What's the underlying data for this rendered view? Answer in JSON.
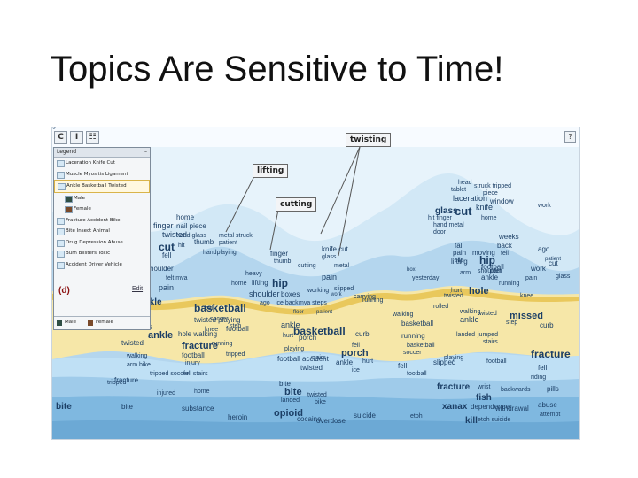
{
  "slide": {
    "title": "Topics Are Sensitive to Time!"
  },
  "toolbar": {
    "buttons": [
      "C",
      "I",
      "☷"
    ],
    "help": "?"
  },
  "legend": {
    "title": "Legend",
    "minimize": "–",
    "items": [
      {
        "label": "Laceration Knife Cut",
        "sub": false
      },
      {
        "label": "Muscle Myositis Ligament",
        "sub": false
      },
      {
        "label": "Ankle Basketball Twisted",
        "sub": false,
        "highlight": true
      },
      {
        "label": "Male",
        "sub": true,
        "color": "#2f4f45"
      },
      {
        "label": "Female",
        "sub": true,
        "color": "#7a4a2a"
      },
      {
        "label": "Fracture Accident Bike",
        "sub": false
      },
      {
        "label": "Bite Insect Animal",
        "sub": false
      },
      {
        "label": "Drug Depression Abuse",
        "sub": false
      },
      {
        "label": "Burn Blisters Toxic",
        "sub": false
      },
      {
        "label": "Accident Driver Vehicle",
        "sub": false
      }
    ],
    "footer": {
      "male": "Male",
      "female": "Female"
    },
    "panel_label": "(d)",
    "edit": "Edit"
  },
  "callouts": {
    "twisting": "twisting",
    "lifting": "lifting",
    "cutting": "cutting"
  },
  "colors": {
    "band_light": "#d8ebf7",
    "band_mid": "#b8d9f0",
    "band_dark": "#8fc2e6",
    "highlight": "#f6e7a8",
    "highlight_dark": "#e9c85c",
    "text": "#1c3f66"
  },
  "words": [
    {
      "t": "home",
      "s": 8
    },
    {
      "t": "finger",
      "s": 9
    },
    {
      "t": "nail piece",
      "s": 8
    },
    {
      "t": "twisted",
      "s": 9
    },
    {
      "t": "hand glass",
      "s": 7
    },
    {
      "t": "metal struck",
      "s": 7
    },
    {
      "t": "thumb",
      "s": 8
    },
    {
      "t": "patient",
      "s": 7
    },
    {
      "t": "cut",
      "s": 12
    },
    {
      "t": "hit",
      "s": 7
    },
    {
      "t": "fell",
      "s": 8
    },
    {
      "t": "handplaying",
      "s": 7
    },
    {
      "t": "houlder",
      "s": 8
    },
    {
      "t": "felt mva",
      "s": 7
    },
    {
      "t": "pain",
      "s": 9
    },
    {
      "t": "heavy",
      "s": 7
    },
    {
      "t": "home",
      "s": 7
    },
    {
      "t": "lifting",
      "s": 8
    },
    {
      "t": "hip",
      "s": 12
    },
    {
      "t": "shoulder",
      "s": 9
    },
    {
      "t": "boxes",
      "s": 8
    },
    {
      "t": "working",
      "s": 7
    },
    {
      "t": "ago",
      "s": 7
    },
    {
      "t": "ice back",
      "s": 7
    },
    {
      "t": "mva steps",
      "s": 7
    },
    {
      "t": "floor",
      "s": 6
    },
    {
      "t": "work",
      "s": 6
    },
    {
      "t": "patient",
      "s": 6
    },
    {
      "t": "finger",
      "s": 8
    },
    {
      "t": "thumb",
      "s": 7
    },
    {
      "t": "cutting",
      "s": 7
    },
    {
      "t": "knife cut",
      "s": 8
    },
    {
      "t": "glass",
      "s": 7
    },
    {
      "t": "metal",
      "s": 7
    },
    {
      "t": "pain",
      "s": 9
    },
    {
      "t": "slipped",
      "s": 7
    },
    {
      "t": "carrying",
      "s": 7
    },
    {
      "t": "running",
      "s": 7
    },
    {
      "t": "head",
      "s": 7
    },
    {
      "t": "tablet",
      "s": 7
    },
    {
      "t": "laceration",
      "s": 9
    },
    {
      "t": "struck tripped",
      "s": 7
    },
    {
      "t": "piece",
      "s": 7
    },
    {
      "t": "window",
      "s": 8
    },
    {
      "t": "work",
      "s": 7
    },
    {
      "t": "glass",
      "s": 10
    },
    {
      "t": "cut",
      "s": 13
    },
    {
      "t": "knife",
      "s": 9
    },
    {
      "t": "hit finger",
      "s": 7
    },
    {
      "t": "home",
      "s": 7
    },
    {
      "t": "hand metal",
      "s": 7
    },
    {
      "t": "door",
      "s": 7
    },
    {
      "t": "fall",
      "s": 8
    },
    {
      "t": "pain",
      "s": 8
    },
    {
      "t": "slip",
      "s": 7
    },
    {
      "t": "moving",
      "s": 8
    },
    {
      "t": "lifting",
      "s": 8
    },
    {
      "t": "hip",
      "s": 12
    },
    {
      "t": "pain",
      "s": 7
    },
    {
      "t": "shoulder",
      "s": 7
    },
    {
      "t": "weeks",
      "s": 8
    },
    {
      "t": "back",
      "s": 8
    },
    {
      "t": "fell",
      "s": 7
    },
    {
      "t": "ago",
      "s": 8
    },
    {
      "t": "patient",
      "s": 6
    },
    {
      "t": "box",
      "s": 6
    },
    {
      "t": "yesterday",
      "s": 7
    },
    {
      "t": "arm",
      "s": 7
    },
    {
      "t": "football",
      "s": 8
    },
    {
      "t": "ankle",
      "s": 8
    },
    {
      "t": "work",
      "s": 8
    },
    {
      "t": "pain",
      "s": 7
    },
    {
      "t": "running",
      "s": 7
    },
    {
      "t": "cut",
      "s": 8
    },
    {
      "t": "glass",
      "s": 7
    },
    {
      "t": "hurt",
      "s": 7
    },
    {
      "t": "hole",
      "s": 11
    },
    {
      "t": "knee",
      "s": 7
    },
    {
      "t": "twisted",
      "s": 7
    },
    {
      "t": "rolled",
      "s": 7
    },
    {
      "t": "ankle",
      "s": 10
    },
    {
      "t": "hurt",
      "s": 7
    },
    {
      "t": "knee",
      "s": 8
    },
    {
      "t": "basketball",
      "s": 12
    },
    {
      "t": "ball",
      "s": 7
    },
    {
      "t": "twisted playing",
      "s": 8
    },
    {
      "t": "soccer",
      "s": 7
    },
    {
      "t": "hurt",
      "s": 8
    },
    {
      "t": "stairs",
      "s": 8
    },
    {
      "t": "ankle",
      "s": 11
    },
    {
      "t": "hole walking",
      "s": 8
    },
    {
      "t": "knee",
      "s": 7
    },
    {
      "t": "step",
      "s": 7
    },
    {
      "t": "football",
      "s": 8
    },
    {
      "t": "ladder",
      "s": 8
    },
    {
      "t": "twisted",
      "s": 8
    },
    {
      "t": "running",
      "s": 7
    },
    {
      "t": "tripped",
      "s": 7
    },
    {
      "t": "ankle",
      "s": 9
    },
    {
      "t": "basketball",
      "s": 12
    },
    {
      "t": "hurt",
      "s": 7
    },
    {
      "t": "porch",
      "s": 8
    },
    {
      "t": "curb",
      "s": 8
    },
    {
      "t": "walking",
      "s": 7
    },
    {
      "t": "basketball",
      "s": 8
    },
    {
      "t": "walking",
      "s": 7
    },
    {
      "t": "twisted",
      "s": 7
    },
    {
      "t": "missed",
      "s": 11
    },
    {
      "t": "ankle",
      "s": 9
    },
    {
      "t": "step",
      "s": 7
    },
    {
      "t": "curb",
      "s": 8
    },
    {
      "t": "landed",
      "s": 7
    },
    {
      "t": "jumped",
      "s": 7
    },
    {
      "t": "stairs",
      "s": 7
    },
    {
      "t": "running",
      "s": 8
    },
    {
      "t": "basketball",
      "s": 7
    },
    {
      "t": "soccer",
      "s": 7
    },
    {
      "t": "walking",
      "s": 7
    },
    {
      "t": "arm bike",
      "s": 7
    },
    {
      "t": "tripped soccer",
      "s": 7
    },
    {
      "t": "fracture",
      "s": 11
    },
    {
      "t": "football",
      "s": 8
    },
    {
      "t": "injury",
      "s": 7
    },
    {
      "t": "fell stairs",
      "s": 7
    },
    {
      "t": "playing",
      "s": 7
    },
    {
      "t": "football accident",
      "s": 8
    },
    {
      "t": "twisted",
      "s": 8
    },
    {
      "t": "stairs",
      "s": 7
    },
    {
      "t": "fell",
      "s": 7
    },
    {
      "t": "porch",
      "s": 11
    },
    {
      "t": "ankle",
      "s": 8
    },
    {
      "t": "hurt",
      "s": 7
    },
    {
      "t": "ice",
      "s": 7
    },
    {
      "t": "slipped",
      "s": 8
    },
    {
      "t": "football",
      "s": 7
    },
    {
      "t": "fell",
      "s": 8
    },
    {
      "t": "playing",
      "s": 7
    },
    {
      "t": "football",
      "s": 7
    },
    {
      "t": "fracture",
      "s": 12
    },
    {
      "t": "fell",
      "s": 8
    },
    {
      "t": "riding",
      "s": 7
    },
    {
      "t": "tripped",
      "s": 7
    },
    {
      "t": "fracture",
      "s": 8
    },
    {
      "t": "injured",
      "s": 7
    },
    {
      "t": "home",
      "s": 7
    },
    {
      "t": "bite",
      "s": 8
    },
    {
      "t": "bite",
      "s": 11
    },
    {
      "t": "twisted",
      "s": 7
    },
    {
      "t": "landed",
      "s": 7
    },
    {
      "t": "bike",
      "s": 7
    },
    {
      "t": "fracture",
      "s": 10
    },
    {
      "t": "wrist",
      "s": 7
    },
    {
      "t": "backwards",
      "s": 7
    },
    {
      "t": "fish",
      "s": 10
    },
    {
      "t": "bite",
      "s": 10
    },
    {
      "t": "bite",
      "s": 8
    },
    {
      "t": "substance",
      "s": 8
    },
    {
      "t": "heroin",
      "s": 8
    },
    {
      "t": "opioid",
      "s": 11
    },
    {
      "t": "cocaine",
      "s": 8
    },
    {
      "t": "overdose",
      "s": 8
    },
    {
      "t": "suicide",
      "s": 8
    },
    {
      "t": "etoh",
      "s": 7
    },
    {
      "t": "xanax",
      "s": 10
    },
    {
      "t": "dependence",
      "s": 8
    },
    {
      "t": "withdrawal",
      "s": 8
    },
    {
      "t": "abuse",
      "s": 8
    },
    {
      "t": "attempt",
      "s": 7
    },
    {
      "t": "kill",
      "s": 10
    },
    {
      "t": "etoh suicide",
      "s": 7
    },
    {
      "t": "pills",
      "s": 8
    },
    {
      "t": "chemical",
      "s": 7
    },
    {
      "t": "bee",
      "s": 7
    },
    {
      "t": "burn",
      "s": 8
    },
    {
      "t": "ground",
      "s": 7
    }
  ]
}
